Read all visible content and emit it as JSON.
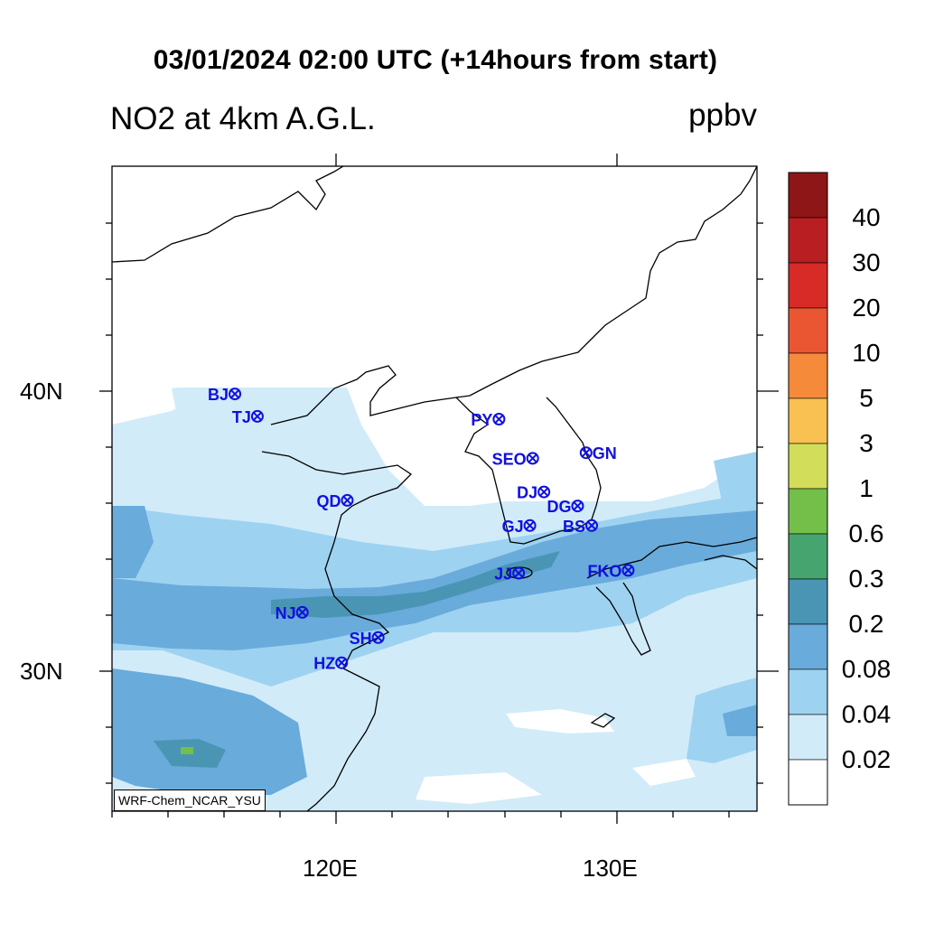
{
  "title": "03/01/2024 02:00 UTC (+14hours from start)",
  "subtitle": "NO2 at 4km A.G.L.",
  "units": "ppbv",
  "credit": "WRF-Chem_NCAR_YSU",
  "axes": {
    "lat_labels": [
      "40N",
      "30N"
    ],
    "lon_labels": [
      "120E",
      "130E"
    ]
  },
  "colorbar": {
    "labels": [
      "40",
      "30",
      "20",
      "10",
      "5",
      "3",
      "1",
      "0.6",
      "0.3",
      "0.2",
      "0.08",
      "0.04",
      "0.02"
    ],
    "colors": [
      "#8f1616",
      "#b91e22",
      "#d82b27",
      "#ea5532",
      "#f58a3a",
      "#f9c152",
      "#d2de5a",
      "#74bf4a",
      "#46a56f",
      "#4a95b4",
      "#69abdb",
      "#9ed2f1",
      "#d1ebf9",
      "#ffffff"
    ]
  },
  "stations": [
    {
      "code": "BJ",
      "lon": 116.4,
      "lat": 39.9
    },
    {
      "code": "TJ",
      "lon": 117.2,
      "lat": 39.1
    },
    {
      "code": "PY",
      "lon": 125.8,
      "lat": 39.0
    },
    {
      "code": "GN",
      "lon": 128.9,
      "lat": 37.8
    },
    {
      "code": "SEO",
      "lon": 127.0,
      "lat": 37.6
    },
    {
      "code": "DJ",
      "lon": 127.4,
      "lat": 36.4
    },
    {
      "code": "QD",
      "lon": 120.4,
      "lat": 36.1
    },
    {
      "code": "DG",
      "lon": 128.6,
      "lat": 35.9
    },
    {
      "code": "GJ",
      "lon": 126.9,
      "lat": 35.2
    },
    {
      "code": "BS",
      "lon": 129.1,
      "lat": 35.2
    },
    {
      "code": "FKO",
      "lon": 130.4,
      "lat": 33.6
    },
    {
      "code": "JJ",
      "lon": 126.5,
      "lat": 33.5
    },
    {
      "code": "NJ",
      "lon": 118.8,
      "lat": 32.1
    },
    {
      "code": "SH",
      "lon": 121.5,
      "lat": 31.2
    },
    {
      "code": "HZ",
      "lon": 120.2,
      "lat": 30.3
    }
  ]
}
